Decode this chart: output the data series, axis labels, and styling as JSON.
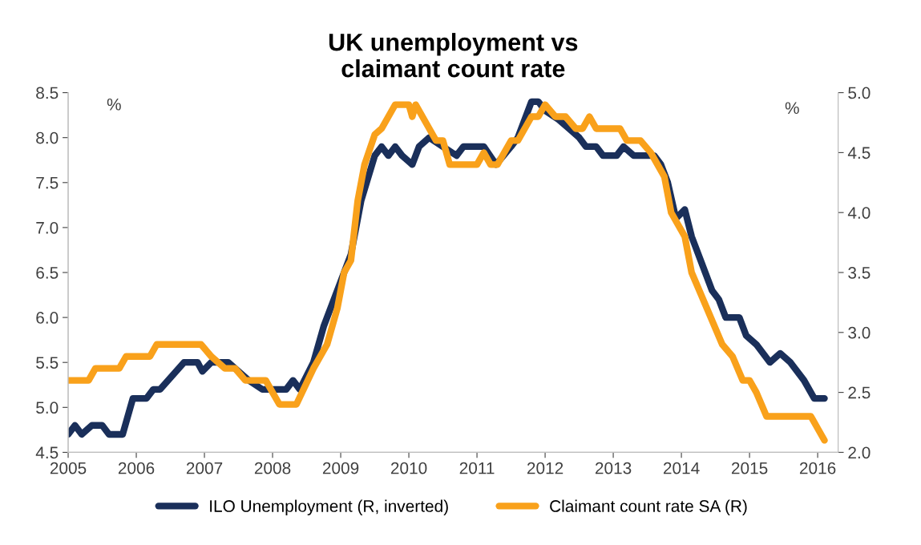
{
  "chart_data": {
    "type": "line",
    "title": "UK unemployment vs\nclaimant count rate",
    "annotations": [
      "%",
      "%"
    ],
    "xlim": [
      2005,
      2016.3
    ],
    "xticks": [
      2005,
      2006,
      2007,
      2008,
      2009,
      2010,
      2011,
      2012,
      2013,
      2014,
      2015,
      2016
    ],
    "ylim": [
      4.5,
      8.5
    ],
    "yticks": [
      {
        "value": 4.5,
        "label": "4.5"
      },
      {
        "value": 5.0,
        "label": "5.0"
      },
      {
        "value": 5.5,
        "label": "5.5"
      },
      {
        "value": 6.0,
        "label": "6.0"
      },
      {
        "value": 6.5,
        "label": "6.5"
      },
      {
        "value": 7.0,
        "label": "7.0"
      },
      {
        "value": 7.5,
        "label": "7.5"
      },
      {
        "value": 8.0,
        "label": "8.0"
      },
      {
        "value": 8.5,
        "label": "8.5"
      }
    ],
    "y2lim": [
      2.0,
      5.0
    ],
    "y2ticks": [
      {
        "value": 2.0,
        "label": "2.0"
      },
      {
        "value": 2.5,
        "label": "2.5"
      },
      {
        "value": 3.0,
        "label": "3.0"
      },
      {
        "value": 3.5,
        "label": "3.5"
      },
      {
        "value": 4.0,
        "label": "4.0"
      },
      {
        "value": 4.5,
        "label": "4.5"
      },
      {
        "value": 5.0,
        "label": "5.0"
      }
    ],
    "grid": false,
    "legend": "bottom",
    "marker": "none",
    "line_style": "solid",
    "series": [
      {
        "name": "ILO Unemployment (R, inverted)",
        "color": "#1a2f5a",
        "x": [
          2005.0,
          2005.1,
          2005.2,
          2005.35,
          2005.5,
          2005.6,
          2005.8,
          2005.95,
          2006.15,
          2006.25,
          2006.35,
          2006.7,
          2006.9,
          2006.97,
          2007.1,
          2007.35,
          2007.5,
          2007.65,
          2007.85,
          2008.2,
          2008.3,
          2008.4,
          2008.6,
          2008.75,
          2009.0,
          2009.15,
          2009.3,
          2009.5,
          2009.6,
          2009.7,
          2009.8,
          2009.9,
          2010.05,
          2010.15,
          2010.3,
          2010.5,
          2010.7,
          2010.8,
          2011.1,
          2011.28,
          2011.5,
          2011.6,
          2011.8,
          2011.9,
          2012.0,
          2012.2,
          2012.35,
          2012.5,
          2012.6,
          2012.75,
          2012.85,
          2013.05,
          2013.15,
          2013.3,
          2013.6,
          2013.7,
          2013.8,
          2013.92,
          2014.05,
          2014.15,
          2014.3,
          2014.45,
          2014.55,
          2014.65,
          2014.85,
          2014.95,
          2015.1,
          2015.3,
          2015.45,
          2015.6,
          2015.8,
          2015.95,
          2016.1
        ],
        "values": [
          4.7,
          4.8,
          4.7,
          4.8,
          4.8,
          4.7,
          4.7,
          5.1,
          5.1,
          5.2,
          5.2,
          5.5,
          5.5,
          5.4,
          5.5,
          5.5,
          5.4,
          5.3,
          5.2,
          5.2,
          5.3,
          5.2,
          5.5,
          5.9,
          6.4,
          6.7,
          7.3,
          7.8,
          7.9,
          7.8,
          7.9,
          7.8,
          7.7,
          7.9,
          8.0,
          7.9,
          7.8,
          7.9,
          7.9,
          7.7,
          7.9,
          8.0,
          8.4,
          8.4,
          8.3,
          8.2,
          8.1,
          8.0,
          7.9,
          7.9,
          7.8,
          7.8,
          7.9,
          7.8,
          7.8,
          7.7,
          7.5,
          7.1,
          7.2,
          6.9,
          6.6,
          6.3,
          6.2,
          6.0,
          6.0,
          5.8,
          5.7,
          5.5,
          5.6,
          5.5,
          5.3,
          5.1,
          5.1
        ]
      },
      {
        "name": "Claimant count rate SA (R)",
        "color": "#f9a11b",
        "axis": "y2",
        "x": [
          2005.0,
          2005.3,
          2005.4,
          2005.75,
          2005.85,
          2006.2,
          2006.3,
          2006.95,
          2007.1,
          2007.3,
          2007.45,
          2007.6,
          2007.9,
          2008.0,
          2008.1,
          2008.35,
          2008.6,
          2008.8,
          2008.95,
          2009.05,
          2009.15,
          2009.25,
          2009.35,
          2009.5,
          2009.6,
          2009.7,
          2009.8,
          2010.0,
          2010.05,
          2010.1,
          2010.2,
          2010.4,
          2010.5,
          2010.6,
          2011.0,
          2011.1,
          2011.2,
          2011.3,
          2011.5,
          2011.6,
          2011.8,
          2011.9,
          2012.0,
          2012.15,
          2012.3,
          2012.45,
          2012.55,
          2012.65,
          2012.75,
          2013.1,
          2013.2,
          2013.4,
          2013.55,
          2013.75,
          2013.85,
          2014.05,
          2014.15,
          2014.3,
          2014.45,
          2014.6,
          2014.75,
          2014.9,
          2015.0,
          2015.1,
          2015.25,
          2015.9,
          2016.0,
          2016.1
        ],
        "values": [
          2.6,
          2.6,
          2.7,
          2.7,
          2.8,
          2.8,
          2.9,
          2.9,
          2.8,
          2.7,
          2.7,
          2.6,
          2.6,
          2.5,
          2.4,
          2.4,
          2.7,
          2.9,
          3.2,
          3.5,
          3.6,
          4.1,
          4.4,
          4.65,
          4.7,
          4.8,
          4.9,
          4.9,
          4.8,
          4.9,
          4.8,
          4.6,
          4.6,
          4.4,
          4.4,
          4.5,
          4.4,
          4.4,
          4.6,
          4.6,
          4.8,
          4.8,
          4.9,
          4.8,
          4.8,
          4.7,
          4.7,
          4.8,
          4.7,
          4.7,
          4.6,
          4.6,
          4.5,
          4.3,
          4.0,
          3.8,
          3.5,
          3.3,
          3.1,
          2.9,
          2.8,
          2.6,
          2.6,
          2.5,
          2.3,
          2.3,
          2.2,
          2.1
        ]
      }
    ]
  }
}
